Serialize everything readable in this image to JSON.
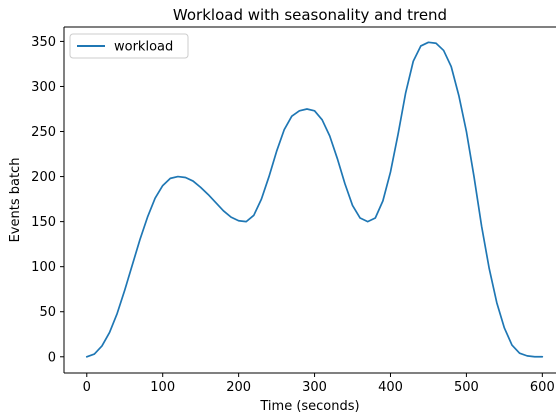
{
  "chart_data": {
    "type": "line",
    "title": "Workload with seasonality and trend",
    "xlabel": "Time (seconds)",
    "ylabel": "Events batch",
    "xlim": [
      -30,
      618
    ],
    "ylim": [
      -18,
      366
    ],
    "xticks": [
      0,
      100,
      200,
      300,
      400,
      500,
      600
    ],
    "yticks": [
      0,
      50,
      100,
      150,
      200,
      250,
      300,
      350
    ],
    "grid": false,
    "legend_position": "top-left",
    "series": [
      {
        "name": "workload",
        "color": "#1f77b4",
        "x": [
          0,
          10,
          20,
          30,
          40,
          50,
          60,
          70,
          80,
          90,
          100,
          110,
          120,
          130,
          140,
          150,
          160,
          170,
          180,
          190,
          200,
          210,
          220,
          230,
          240,
          250,
          260,
          270,
          280,
          290,
          300,
          310,
          320,
          330,
          340,
          350,
          360,
          370,
          380,
          390,
          400,
          410,
          420,
          430,
          440,
          450,
          460,
          470,
          480,
          490,
          500,
          510,
          520,
          530,
          540,
          550,
          560,
          570,
          580,
          590,
          600
        ],
        "values": [
          0,
          3,
          12,
          27,
          48,
          74,
          102,
          130,
          155,
          176,
          190,
          198,
          200,
          199,
          195,
          188,
          180,
          171,
          162,
          155,
          151,
          150,
          157,
          175,
          200,
          228,
          252,
          267,
          273,
          275,
          273,
          263,
          245,
          220,
          192,
          168,
          154,
          150,
          154,
          173,
          205,
          247,
          293,
          328,
          345,
          349,
          348,
          340,
          322,
          290,
          250,
          200,
          145,
          98,
          60,
          32,
          13,
          4,
          1,
          0,
          0
        ]
      }
    ]
  }
}
